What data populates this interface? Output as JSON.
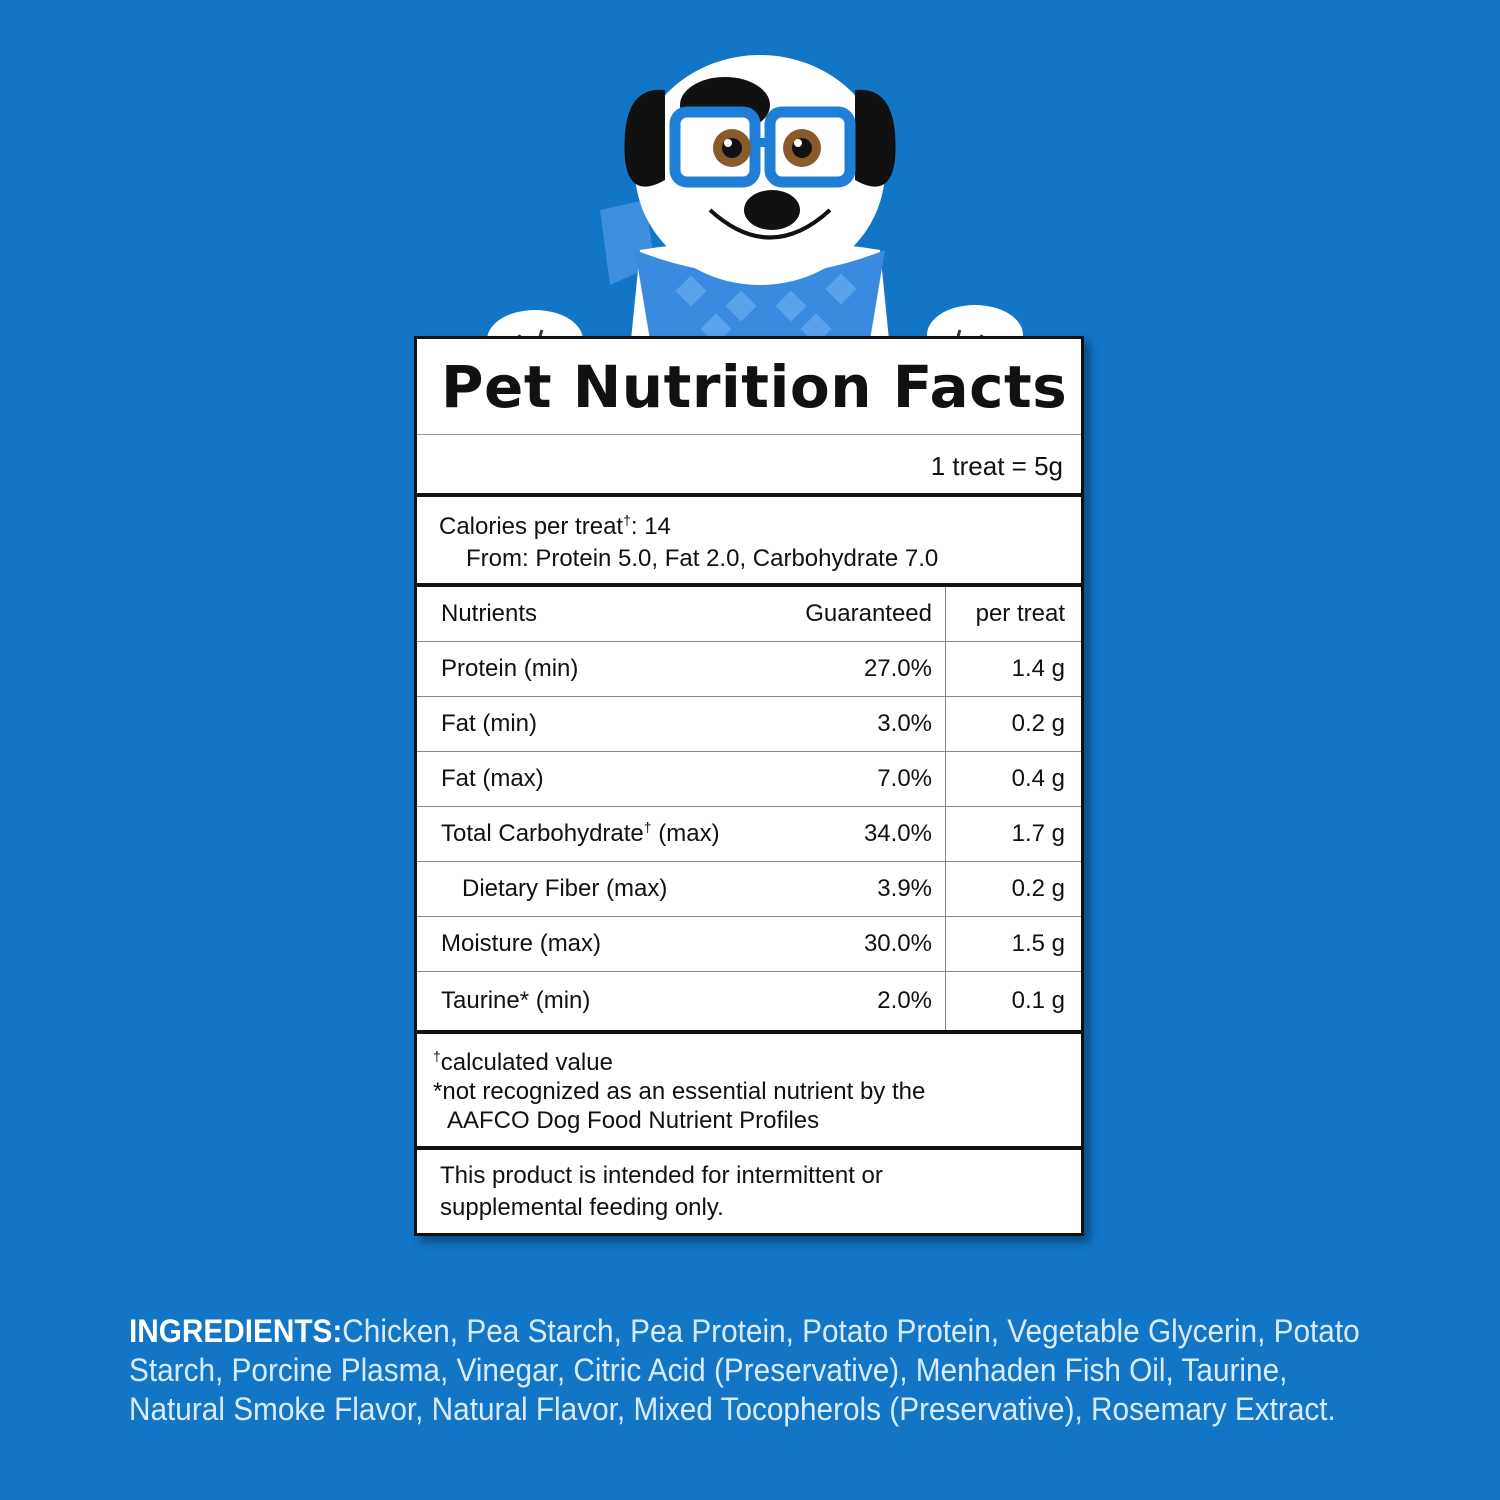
{
  "label": {
    "title": "Pet Nutrition Facts",
    "serving": "1 treat = 5g",
    "calories_prefix": "Calories per treat",
    "calories_dagger": "†",
    "calories_value": ": 14",
    "calories_from": "From: Protein 5.0, Fat 2.0, Carbohydrate 7.0",
    "headers": {
      "nutrients": "Nutrients",
      "guaranteed": "Guaranteed",
      "per_treat": "per treat"
    },
    "rows": [
      {
        "name": "Protein (min)",
        "guaranteed": "27.0%",
        "per_treat": "1.4 g"
      },
      {
        "name": "Fat (min)",
        "guaranteed": "3.0%",
        "per_treat": "0.2 g"
      },
      {
        "name": "Fat (max)",
        "guaranteed": "7.0%",
        "per_treat": "0.4 g"
      },
      {
        "name_a": "Total Carbohydrate",
        "name_sup": "†",
        "name_b": " (max)",
        "guaranteed": "34.0%",
        "per_treat": "1.7 g"
      },
      {
        "name": "Dietary Fiber (max)",
        "guaranteed": "3.9%",
        "per_treat": "0.2 g"
      },
      {
        "name": "Moisture (max)",
        "guaranteed": "30.0%",
        "per_treat": "1.5 g"
      },
      {
        "name": "Taurine* (min)",
        "guaranteed": "2.0%",
        "per_treat": "0.1 g"
      }
    ],
    "note1_sup": "†",
    "note1": "calculated value",
    "note2_line1": "*not recognized as an essential nutrient by the",
    "note2_line2": "AAFCO Dog Food Nutrient Profiles",
    "feeding_line1": "This product is intended for intermittent or",
    "feeding_line2": "supplemental feeding only."
  },
  "ingredients": {
    "label": "INGREDIENTS:",
    "line1": "Chicken, Pea Starch, Pea Protein, Potato Protein, Vegetable Glycerin, Potato",
    "line2": "Starch, Porcine Plasma, Vinegar, Citric Acid (Preservative), Menhaden Fish Oil, Taurine,",
    "line3": "Natural Smoke Flavor, Natural Flavor, Mixed Tocopherols (Preservative), Rosemary Extract."
  },
  "colors": {
    "background": "#1275c5",
    "glasses": "#1f7fd6",
    "scarf": "#3f8fdf"
  },
  "icons": {
    "mascot": "dog-mascot-icon"
  }
}
